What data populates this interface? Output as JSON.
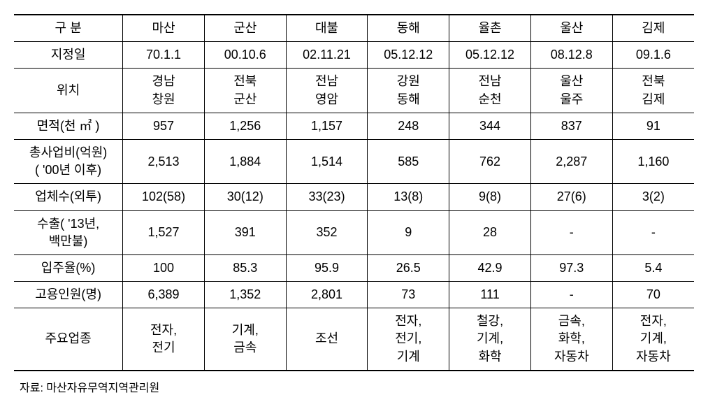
{
  "columns": [
    "구 분",
    "마산",
    "군산",
    "대불",
    "동해",
    "율촌",
    "울산",
    "김제"
  ],
  "rows": [
    {
      "label": "지정일",
      "cells": [
        "70.1.1",
        "00.10.6",
        "02.11.21",
        "05.12.12",
        "05.12.12",
        "08.12.8",
        "09.1.6"
      ]
    },
    {
      "label": "위치",
      "cells": [
        "경남\n창원",
        "전북\n군산",
        "전남\n영암",
        "강원\n동해",
        "전남\n순천",
        "울산\n울주",
        "전북\n김제"
      ]
    },
    {
      "label": "면적(천 ㎡ )",
      "cells": [
        "957",
        "1,256",
        "1,157",
        "248",
        "344",
        "837",
        "91"
      ]
    },
    {
      "label": "총사업비(억원)\n( '00년 이후)",
      "cells": [
        "2,513",
        "1,884",
        "1,514",
        "585",
        "762",
        "2,287",
        "1,160"
      ]
    },
    {
      "label": "업체수(외투)",
      "cells": [
        "102(58)",
        "30(12)",
        "33(23)",
        "13(8)",
        "9(8)",
        "27(6)",
        "3(2)"
      ]
    },
    {
      "label": "수출( '13년,\n백만불)",
      "cells": [
        "1,527",
        "391",
        "352",
        "9",
        "28",
        "-",
        "-"
      ]
    },
    {
      "label": "입주율(%)",
      "cells": [
        "100",
        "85.3",
        "95.9",
        "26.5",
        "42.9",
        "97.3",
        "5.4"
      ]
    },
    {
      "label": "고용인원(명)",
      "cells": [
        "6,389",
        "1,352",
        "2,801",
        "73",
        "111",
        "-",
        "70"
      ]
    },
    {
      "label": "주요업종",
      "cells": [
        "전자,\n전기",
        "기계,\n금속",
        "조선",
        "전자,\n전기,\n기계",
        "철강,\n기계,\n화학",
        "금속,\n화학,\n자동차",
        "전자,\n기계,\n자동차"
      ]
    }
  ],
  "source": "자료: 마산자유무역지역관리원",
  "style": {
    "font_family": "Malgun Gothic",
    "cell_fontsize": 18,
    "source_fontsize": 16,
    "border_color": "#000000",
    "top_border_width": 2,
    "bottom_border_width": 2,
    "inner_border_width": 1,
    "background_color": "#ffffff",
    "text_color": "#000000"
  }
}
